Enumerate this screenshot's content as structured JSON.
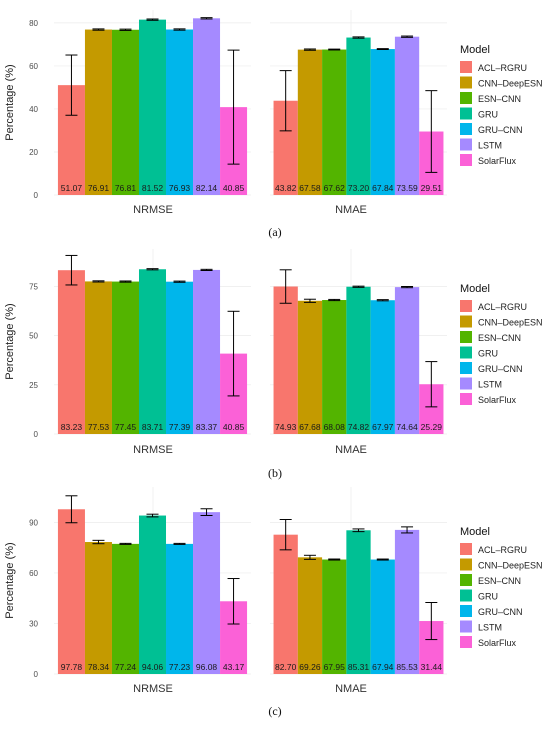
{
  "legend": {
    "title": "Model",
    "placement": "right"
  },
  "series_colors": {
    "ACL–RGRU": "#F8766D",
    "CNN–DeepESN": "#C49A00",
    "ESN–CNN": "#53B400",
    "GRU": "#00C094",
    "GRU–CNN": "#00B6EB",
    "LSTM": "#A58AFF",
    "SolarFlux": "#FB61D7"
  },
  "chart_data": [
    {
      "type": "bar",
      "caption": "(a)",
      "ylabel": "Percentage (%)",
      "ylim": [
        0,
        86
      ],
      "yticks": [
        0,
        20,
        40,
        60,
        80
      ],
      "grid": true,
      "categories": [
        "NRMSE",
        "NMAE"
      ],
      "series": [
        {
          "name": "ACL–RGRU",
          "values": [
            51.07,
            43.82
          ],
          "err": [
            14,
            14
          ]
        },
        {
          "name": "CNN–DeepESN",
          "values": [
            76.91,
            67.58
          ],
          "err": [
            0.3,
            0.3
          ]
        },
        {
          "name": "ESN–CNN",
          "values": [
            76.81,
            67.62
          ],
          "err": [
            0.3,
            0.2
          ]
        },
        {
          "name": "GRU",
          "values": [
            81.52,
            73.2
          ],
          "err": [
            0.3,
            0.3
          ]
        },
        {
          "name": "GRU–CNN",
          "values": [
            76.93,
            67.84
          ],
          "err": [
            0.3,
            0.2
          ]
        },
        {
          "name": "LSTM",
          "values": [
            82.14,
            73.59
          ],
          "err": [
            0.3,
            0.3
          ]
        },
        {
          "name": "SolarFlux",
          "values": [
            40.85,
            29.51
          ],
          "err": [
            26.5,
            19
          ]
        }
      ],
      "labels": [
        [
          "51.07",
          "43.82"
        ],
        [
          "76.91",
          "67.58"
        ],
        [
          "76.81",
          "67.62"
        ],
        [
          "81.52",
          "73.20"
        ],
        [
          "76.93",
          "67.84"
        ],
        [
          "82.14",
          "73.59"
        ],
        [
          "40.85",
          "29.51"
        ]
      ]
    },
    {
      "type": "bar",
      "caption": "(b)",
      "ylabel": "Percentage (%)",
      "ylim": [
        0,
        94
      ],
      "yticks": [
        0,
        25,
        50,
        75
      ],
      "grid": true,
      "categories": [
        "NRMSE",
        "NMAE"
      ],
      "series": [
        {
          "name": "ACL–RGRU",
          "values": [
            83.23,
            74.93
          ],
          "err": [
            7.5,
            8.5
          ]
        },
        {
          "name": "CNN–DeepESN",
          "values": [
            77.53,
            67.68
          ],
          "err": [
            0.3,
            0.8
          ]
        },
        {
          "name": "ESN–CNN",
          "values": [
            77.45,
            68.08
          ],
          "err": [
            0.3,
            0.3
          ]
        },
        {
          "name": "GRU",
          "values": [
            83.71,
            74.82
          ],
          "err": [
            0.3,
            0.3
          ]
        },
        {
          "name": "GRU–CNN",
          "values": [
            77.39,
            67.97
          ],
          "err": [
            0.3,
            0.3
          ]
        },
        {
          "name": "LSTM",
          "values": [
            83.37,
            74.64
          ],
          "err": [
            0.3,
            0.3
          ]
        },
        {
          "name": "SolarFlux",
          "values": [
            40.85,
            25.29
          ],
          "err": [
            21.5,
            11.5
          ]
        }
      ],
      "labels": [
        [
          "83.23",
          "74.93"
        ],
        [
          "77.53",
          "67.68"
        ],
        [
          "77.45",
          "68.08"
        ],
        [
          "83.71",
          "74.82"
        ],
        [
          "77.39",
          "67.97"
        ],
        [
          "83.37",
          "74.64"
        ],
        [
          "40.85",
          "25.29"
        ]
      ]
    },
    {
      "type": "bar",
      "caption": "(c)",
      "ylabel": "Percentage (%)",
      "ylim": [
        0,
        111
      ],
      "yticks": [
        0,
        30,
        60,
        90
      ],
      "grid": true,
      "categories": [
        "NRMSE",
        "NMAE"
      ],
      "series": [
        {
          "name": "ACL–RGRU",
          "values": [
            97.78,
            82.7
          ],
          "err": [
            8,
            9
          ]
        },
        {
          "name": "CNN–DeepESN",
          "values": [
            78.34,
            69.26
          ],
          "err": [
            1,
            1.2
          ]
        },
        {
          "name": "ESN–CNN",
          "values": [
            77.24,
            67.95
          ],
          "err": [
            0.3,
            0.3
          ]
        },
        {
          "name": "GRU",
          "values": [
            94.06,
            85.31
          ],
          "err": [
            0.8,
            0.8
          ]
        },
        {
          "name": "GRU–CNN",
          "values": [
            77.23,
            67.94
          ],
          "err": [
            0.3,
            0.3
          ]
        },
        {
          "name": "LSTM",
          "values": [
            96.08,
            85.53
          ],
          "err": [
            2,
            1.8
          ]
        },
        {
          "name": "SolarFlux",
          "values": [
            43.17,
            31.44
          ],
          "err": [
            13.5,
            11
          ]
        }
      ],
      "labels": [
        [
          "97.78",
          "82.70"
        ],
        [
          "78.34",
          "69.26"
        ],
        [
          "77.24",
          "67.95"
        ],
        [
          "94.06",
          "85.31"
        ],
        [
          "77.23",
          "67.94"
        ],
        [
          "96.08",
          "85.53"
        ],
        [
          "43.17",
          "31.44"
        ]
      ]
    }
  ]
}
